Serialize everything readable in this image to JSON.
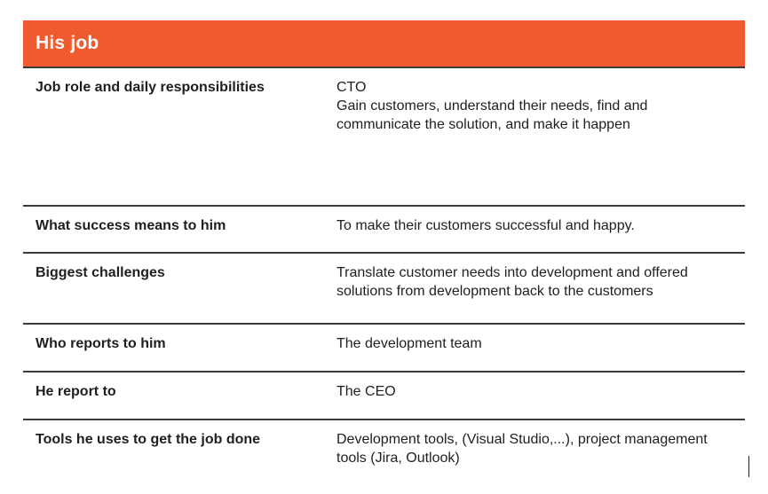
{
  "header": {
    "title": "His job"
  },
  "rows": [
    {
      "label": "Job role and daily responsibilities",
      "value_lines": [
        "CTO",
        "Gain customers, understand their needs, find and communicate the solution, and make it happen"
      ]
    },
    {
      "label": "What success means to him",
      "value_lines": [
        "To make their customers successful and happy."
      ]
    },
    {
      "label": "Biggest challenges",
      "value_lines": [
        "Translate customer needs into development and offered solutions from development back to the customers"
      ]
    },
    {
      "label": "Who reports to him",
      "value_lines": [
        "The development team"
      ]
    },
    {
      "label": "He report to",
      "value_lines": [
        "The CEO"
      ]
    },
    {
      "label": "Tools he uses to get the job done",
      "value_lines": [
        "Development tools, (Visual Studio,...), project management tools (Jira, Outlook)"
      ]
    }
  ],
  "colors": {
    "header_bg": "#f05a2f",
    "header_text": "#ffffff",
    "rule": "#3a3a3a"
  }
}
